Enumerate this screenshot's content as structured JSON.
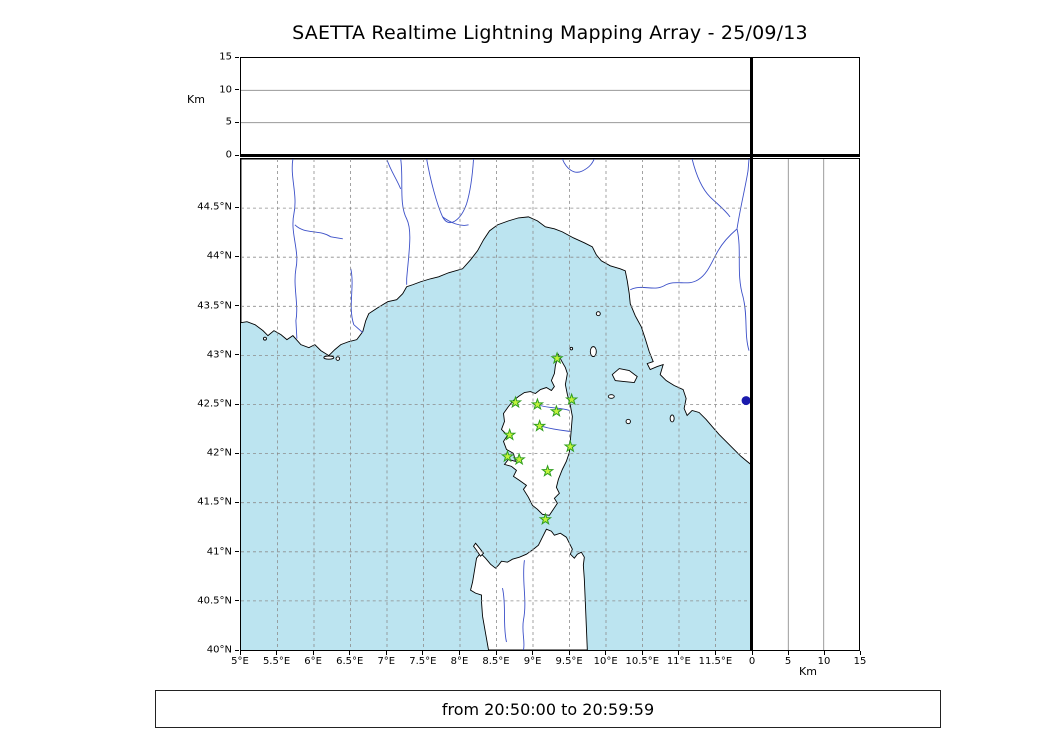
{
  "title": "SAETTA Realtime Lightning Mapping Array - 25/09/13",
  "status_bar": {
    "text": "from 20:50:00 to 20:59:59"
  },
  "labels": {
    "km_axis": "Km"
  },
  "colors": {
    "sea": "#bce4f0",
    "land": "#ffffff",
    "coast": "#000000",
    "river": "#3c50c8",
    "grid": "#8c8c8c",
    "station_fill": "#c3f33c",
    "station_edge": "#2f9e1e",
    "event": "#1a1aad"
  },
  "chart_data": {
    "type": "scatter",
    "title": "SAETTA Realtime Lightning Mapping Array - 25/09/13",
    "time_window": {
      "from": "20:50:00",
      "to": "20:59:59"
    },
    "map_panel": {
      "lon_range_deg_e": [
        5,
        12
      ],
      "lat_range_deg_n": [
        40,
        45
      ],
      "lon_ticks": [
        5,
        5.5,
        6,
        6.5,
        7,
        7.5,
        8,
        8.5,
        9,
        9.5,
        10,
        10.5,
        11,
        11.5
      ],
      "lon_tick_labels": [
        "5°E",
        "5.5°E",
        "6°E",
        "6.5°E",
        "7°E",
        "7.5°E",
        "8°E",
        "8.5°E",
        "9°E",
        "9.5°E",
        "10°E",
        "10.5°E",
        "11°E",
        "11.5°E"
      ],
      "lat_ticks": [
        44.5,
        44,
        43.5,
        43,
        42.5,
        42,
        41.5,
        41,
        40.5,
        40
      ],
      "lat_tick_labels": [
        "44.5°N",
        "44°N",
        "43.5°N",
        "43°N",
        "42.5°N",
        "42°N",
        "41.5°N",
        "41°N",
        "40.5°N",
        "40°N"
      ],
      "grid": "0.5 degree dashed",
      "stations_lon_lat": [
        [
          9.33,
          42.97
        ],
        [
          8.76,
          42.52
        ],
        [
          9.06,
          42.5
        ],
        [
          9.53,
          42.55
        ],
        [
          9.32,
          42.43
        ],
        [
          9.09,
          42.28
        ],
        [
          8.68,
          42.19
        ],
        [
          8.65,
          41.97
        ],
        [
          8.81,
          41.94
        ],
        [
          9.51,
          42.07
        ],
        [
          9.2,
          41.82
        ],
        [
          9.17,
          41.33
        ]
      ],
      "event_marker_lon_lat": [
        11.92,
        42.54
      ]
    },
    "altitude_top_panel": {
      "axis": "Km",
      "range": [
        0,
        15
      ],
      "ticks": [
        0,
        5,
        10,
        15
      ],
      "tick_labels": [
        "0",
        "5",
        "10",
        "15"
      ],
      "gridlines_km": [
        5,
        10
      ],
      "data_points": []
    },
    "altitude_right_panel": {
      "axis": "Km",
      "range": [
        0,
        15
      ],
      "ticks": [
        0,
        5,
        10,
        15
      ],
      "tick_labels": [
        "0",
        "5",
        "10",
        "15"
      ],
      "gridlines_km": [
        5,
        10
      ],
      "data_points": []
    }
  }
}
